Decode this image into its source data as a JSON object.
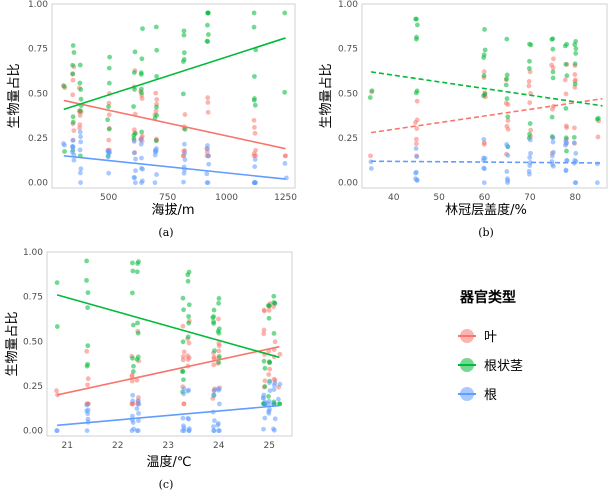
{
  "legend": {
    "title": "器官类型",
    "items": [
      {
        "label": "叶",
        "color": "#F8766D"
      },
      {
        "label": "根状茎",
        "color": "#00BA38"
      },
      {
        "label": "根",
        "color": "#619CFF"
      }
    ]
  },
  "chart_data": [
    {
      "type": "scatter",
      "panel_label": "(a)",
      "xlabel": "海拔/m",
      "ylabel": "生物量占比",
      "xlim": [
        260,
        1290
      ],
      "ylim": [
        -0.03,
        1.0
      ],
      "xticks": [
        500,
        750,
        1000,
        1250
      ],
      "yticks": [
        0.0,
        0.25,
        0.5,
        0.75,
        1.0
      ],
      "ytick_labels": [
        "0.00",
        "0.25",
        "0.50",
        "0.75",
        "1.00"
      ],
      "x_columns": [
        310,
        350,
        380,
        500,
        610,
        640,
        700,
        820,
        920,
        1120,
        1250
      ],
      "trend_style": "solid",
      "series": [
        {
          "name": "叶",
          "line": [
            [
              310,
              0.46
            ],
            [
              1250,
              0.19
            ]
          ],
          "range": [
            0.15,
            0.75
          ]
        },
        {
          "name": "根状茎",
          "line": [
            [
              310,
              0.41
            ],
            [
              1250,
              0.81
            ]
          ],
          "range": [
            0.15,
            0.95
          ]
        },
        {
          "name": "根",
          "line": [
            [
              310,
              0.15
            ],
            [
              1250,
              0.02
            ]
          ],
          "range": [
            0.0,
            0.32
          ]
        }
      ]
    },
    {
      "type": "scatter",
      "panel_label": "(b)",
      "xlabel": "林冠层盖度/%",
      "ylabel": "生物量占比",
      "xlim": [
        33,
        87
      ],
      "ylim": [
        -0.03,
        1.0
      ],
      "xticks": [
        40,
        50,
        60,
        70,
        80
      ],
      "yticks": [
        0.0,
        0.25,
        0.5,
        0.75,
        1.0
      ],
      "ytick_labels": [
        "0.00",
        "0.25",
        "0.50",
        "0.75",
        "1.00"
      ],
      "x_columns": [
        35,
        45,
        60,
        65,
        70,
        75,
        78,
        80,
        85
      ],
      "trend_style": "dashed",
      "series": [
        {
          "name": "叶",
          "line": [
            [
              35,
              0.28
            ],
            [
              86,
              0.47
            ]
          ],
          "range": [
            0.15,
            0.75
          ]
        },
        {
          "name": "根状茎",
          "line": [
            [
              35,
              0.62
            ],
            [
              86,
              0.43
            ]
          ],
          "range": [
            0.15,
            0.95
          ]
        },
        {
          "name": "根",
          "line": [
            [
              35,
              0.12
            ],
            [
              86,
              0.11
            ]
          ],
          "range": [
            0.0,
            0.32
          ]
        }
      ]
    },
    {
      "type": "scatter",
      "panel_label": "(c)",
      "xlabel": "温度/℃",
      "ylabel": "生物量占比",
      "xlim": [
        20.6,
        25.45
      ],
      "ylim": [
        -0.03,
        1.0
      ],
      "xticks": [
        21,
        22,
        23,
        24,
        25
      ],
      "yticks": [
        0.0,
        0.25,
        0.5,
        0.75,
        1.0
      ],
      "ytick_labels": [
        "0.00",
        "0.25",
        "0.50",
        "0.75",
        "1.00"
      ],
      "x_columns": [
        20.8,
        21.4,
        22.3,
        22.4,
        23.3,
        23.4,
        23.9,
        24.0,
        24.9,
        25.0,
        25.1,
        25.2
      ],
      "trend_style": "solid",
      "series": [
        {
          "name": "叶",
          "line": [
            [
              20.8,
              0.2
            ],
            [
              25.2,
              0.47
            ]
          ],
          "range": [
            0.15,
            0.75
          ]
        },
        {
          "name": "根状茎",
          "line": [
            [
              20.8,
              0.76
            ],
            [
              25.2,
              0.41
            ]
          ],
          "range": [
            0.15,
            0.95
          ]
        },
        {
          "name": "根",
          "line": [
            [
              20.8,
              0.03
            ],
            [
              25.2,
              0.14
            ]
          ],
          "range": [
            0.0,
            0.32
          ]
        }
      ]
    }
  ]
}
